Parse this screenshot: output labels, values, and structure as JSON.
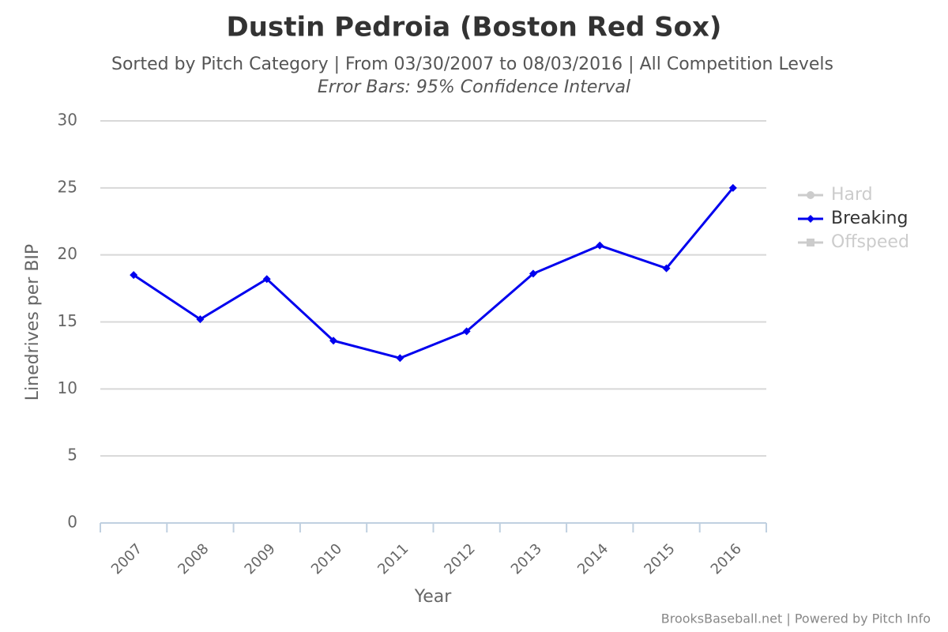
{
  "chart_data": {
    "type": "line",
    "title": "Dustin Pedroia (Boston Red Sox)",
    "subtitle": "Sorted by Pitch Category | From 03/30/2007 to 08/03/2016 | All Competition Levels",
    "note": "Error Bars: 95% Confidence Interval",
    "x_label": "Year",
    "y_label": "Linedrives per BIP",
    "credits": "BrooksBaseball.net | Powered by Pitch Info",
    "categories": [
      "2007",
      "2008",
      "2009",
      "2010",
      "2011",
      "2012",
      "2013",
      "2014",
      "2015",
      "2016"
    ],
    "series": [
      {
        "name": "Hard",
        "color": "#cccccc",
        "visible": false,
        "values": [
          null,
          null,
          null,
          null,
          null,
          null,
          null,
          null,
          null,
          null
        ]
      },
      {
        "name": "Breaking",
        "color": "#0000ee",
        "visible": true,
        "values": [
          18.5,
          15.2,
          18.2,
          13.6,
          12.3,
          14.3,
          18.6,
          20.7,
          19.0,
          25.0
        ]
      },
      {
        "name": "Offspeed",
        "color": "#cccccc",
        "visible": false,
        "values": [
          null,
          null,
          null,
          null,
          null,
          null,
          null,
          null,
          null,
          null
        ]
      }
    ],
    "ylim": [
      0,
      30
    ],
    "yticks": [
      0,
      5,
      10,
      15,
      20,
      25,
      30
    ],
    "grid": true,
    "legend": "right"
  }
}
